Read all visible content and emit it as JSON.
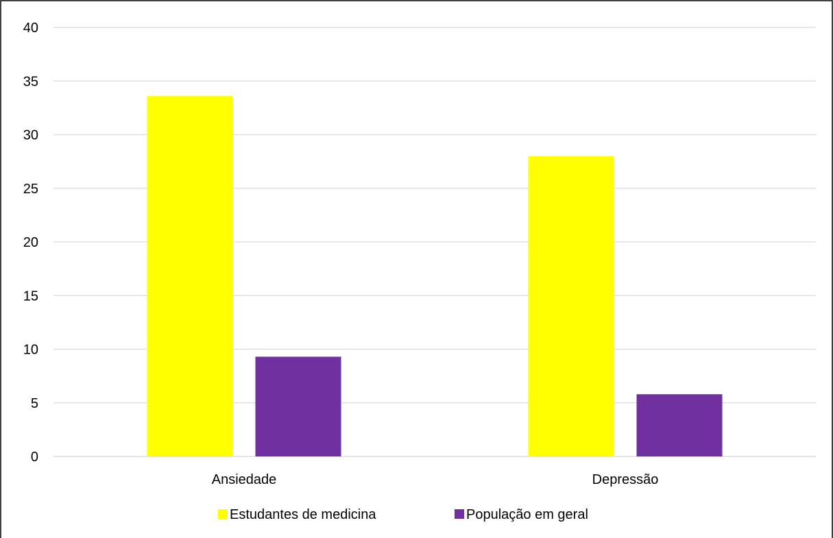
{
  "chart_data": {
    "type": "bar",
    "categories": [
      "Ansiedade",
      "Depressão"
    ],
    "series": [
      {
        "name": "Estudantes de medicina",
        "values": [
          33.6,
          28.0
        ],
        "color": "#FFFF00"
      },
      {
        "name": "População em geral",
        "values": [
          9.3,
          5.8
        ],
        "color": "#7030A0"
      }
    ],
    "title": "",
    "xlabel": "",
    "ylabel": "",
    "ylim": [
      0,
      40
    ],
    "yticks": [
      0,
      5,
      10,
      15,
      20,
      25,
      30,
      35,
      40
    ],
    "grid": true,
    "legend": "bottom"
  }
}
